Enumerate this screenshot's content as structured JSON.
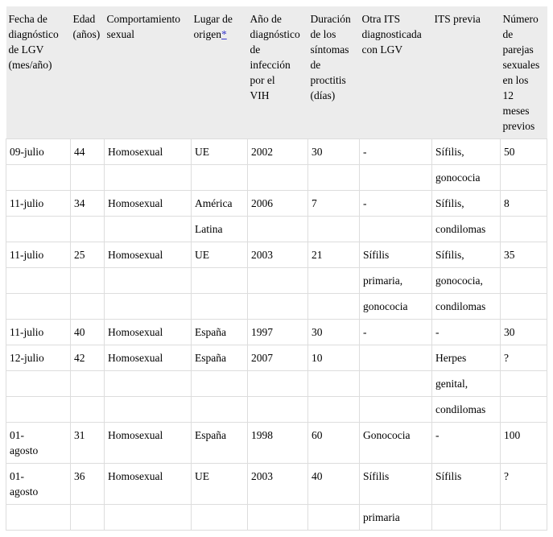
{
  "page": {
    "background": "#ffffff"
  },
  "table": {
    "header_bg": "#ececec",
    "border_color": "#dddddd",
    "text_color": "#000000",
    "link_color": "#3a3acd",
    "columns": [
      {
        "label": "Fecha de\ndiagnóstico\nde LGV\n(mes/año)"
      },
      {
        "label": "Edad\n(años)"
      },
      {
        "label": "Comportamiento\nsexual"
      },
      {
        "label": "Lugar de\norigen",
        "footnote": "*"
      },
      {
        "label": "Año de\ndiagnóstico\nde\ninfección\npor el\nVIH"
      },
      {
        "label": "Duración\nde los\nsíntomas\nde\nproctitis\n(días)"
      },
      {
        "label": "Otra ITS\ndiagnosticada\ncon LGV"
      },
      {
        "label": "ITS previa"
      },
      {
        "label": "Número\nde\nparejas\nsexuales\nen los\n12\nmeses\nprevios"
      }
    ],
    "rows": [
      [
        "09-julio",
        "44",
        "Homosexual",
        "UE",
        "2002",
        "30",
        "-",
        "Sífilis,",
        "50"
      ],
      [
        "",
        "",
        "",
        "",
        "",
        "",
        "",
        "gonococia",
        ""
      ],
      [
        "11-julio",
        "34",
        "Homosexual",
        "América",
        "2006",
        "7",
        "-",
        "Sífilis,",
        "8"
      ],
      [
        "",
        "",
        "",
        "Latina",
        "",
        "",
        "",
        "condilomas",
        ""
      ],
      [
        "11-julio",
        "25",
        "Homosexual",
        "UE",
        "2003",
        "21",
        "Sífilis",
        "Sífilis,",
        "35"
      ],
      [
        "",
        "",
        "",
        "",
        "",
        "",
        "primaria,",
        "gonococia,",
        ""
      ],
      [
        "",
        "",
        "",
        "",
        "",
        "",
        "gonococia",
        "condilomas",
        ""
      ],
      [
        "11-julio",
        "40",
        "Homosexual",
        "España",
        "1997",
        "30",
        "-",
        "-",
        "30"
      ],
      [
        "12-julio",
        "42",
        "Homosexual",
        "España",
        "2007",
        "10",
        "",
        "Herpes",
        "?"
      ],
      [
        "",
        "",
        "",
        "",
        "",
        "",
        "",
        "genital,",
        ""
      ],
      [
        "",
        "",
        "",
        "",
        "",
        "",
        "",
        "condilomas",
        ""
      ],
      [
        "01-\nagosto",
        "31",
        "Homosexual",
        "España",
        "1998",
        "60",
        "Gonococia",
        "-",
        "100"
      ],
      [
        "01-\nagosto",
        "36",
        "Homosexual",
        "UE",
        "2003",
        "40",
        "Sífilis",
        "Sífilis",
        "?"
      ],
      [
        "",
        "",
        "",
        "",
        "",
        "",
        "primaria",
        "",
        ""
      ]
    ]
  }
}
